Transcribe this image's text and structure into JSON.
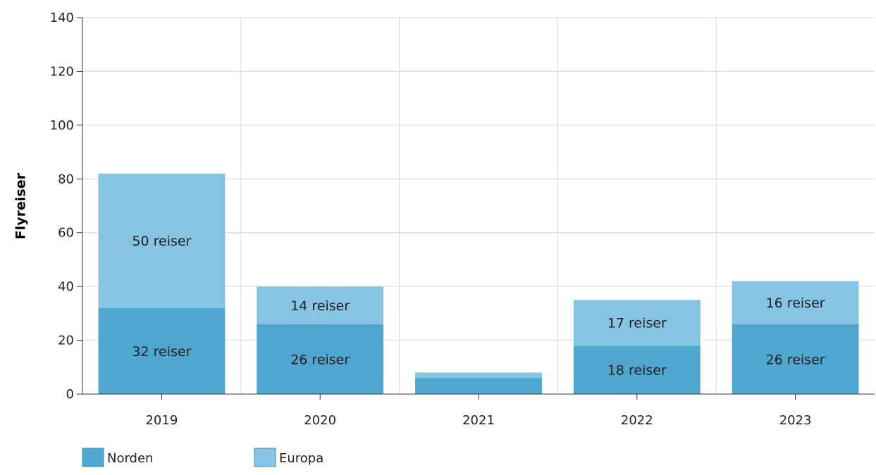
{
  "chart_data": {
    "type": "bar",
    "stacked": true,
    "categories": [
      "2019",
      "2020",
      "2021",
      "2022",
      "2023"
    ],
    "series": [
      {
        "name": "Norden",
        "color": "#4FA6CE",
        "values": [
          32,
          26,
          6,
          18,
          26
        ],
        "labels": [
          "32 reiser",
          "26 reiser",
          "",
          "18 reiser",
          "26 reiser"
        ]
      },
      {
        "name": "Europa",
        "color": "#85C4E3",
        "values": [
          50,
          14,
          2,
          17,
          16
        ],
        "labels": [
          "50 reiser",
          "14 reiser",
          "",
          "17 reiser",
          "16 reiser"
        ]
      }
    ],
    "xlabel": "",
    "ylabel": "Flyreiser",
    "ylim": [
      0,
      140
    ],
    "yticks": [
      0,
      20,
      40,
      60,
      80,
      100,
      120,
      140
    ],
    "grid": true,
    "legend_position": "bottom-left"
  }
}
